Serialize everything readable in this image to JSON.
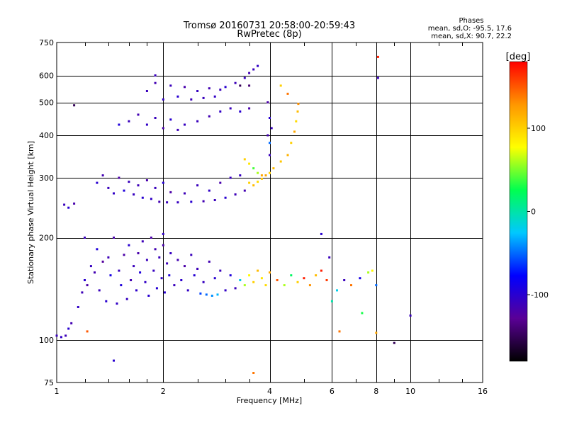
{
  "chart_data": {
    "type": "scatter",
    "title": "Tromsø 20160731 20:58:00-20:59:43",
    "subtitle": "RwPretec (8p)",
    "xlabel": "Frequency [MHz]",
    "ylabel": "Stationary phase Virtual Height [km]",
    "xscale": "log",
    "yscale": "log",
    "xlim": [
      1,
      16
    ],
    "ylim": [
      75,
      750
    ],
    "x_ticks": [
      "1",
      "2",
      "4",
      "6",
      "8",
      "10",
      "16"
    ],
    "x_tick_values": [
      1,
      2,
      4,
      6,
      8,
      10,
      16
    ],
    "y_ticks": [
      "75",
      "100",
      "200",
      "300",
      "400",
      "500",
      "600",
      "750"
    ],
    "y_tick_values": [
      75,
      100,
      200,
      300,
      400,
      500,
      600,
      750
    ],
    "x_minor_ticks": [
      1.2,
      1.4,
      1.6,
      1.8,
      2.5,
      3,
      3.5,
      5,
      7,
      9,
      12,
      14
    ],
    "grid": true,
    "colorbar": {
      "label": "[deg]",
      "ticks": [
        "-100",
        "0",
        "100"
      ],
      "tick_values": [
        -100,
        0,
        100
      ],
      "range": [
        -180,
        180
      ],
      "colormap": [
        "#000000",
        "#5a0096",
        "#0000ff",
        "#00c8ff",
        "#00ff50",
        "#ffff00",
        "#ff9600",
        "#ff0000"
      ]
    },
    "stats": {
      "heading": "Phases",
      "line1": "mean, sd,O: -95.5, 17.6",
      "line2": "mean, sd,X:  90.7, 22.2"
    },
    "series": [
      {
        "values": [
          {
            "x": 1.0,
            "y": 103,
            "p": -110
          },
          {
            "x": 1.03,
            "y": 102,
            "p": -105
          },
          {
            "x": 1.06,
            "y": 103,
            "p": -112
          },
          {
            "x": 1.08,
            "y": 108,
            "p": -100
          },
          {
            "x": 1.1,
            "y": 112,
            "p": -115
          },
          {
            "x": 1.05,
            "y": 250,
            "p": -110
          },
          {
            "x": 1.08,
            "y": 245,
            "p": -100
          },
          {
            "x": 1.12,
            "y": 252,
            "p": -118
          },
          {
            "x": 1.12,
            "y": 490,
            "p": -150
          },
          {
            "x": 1.15,
            "y": 125,
            "p": -105
          },
          {
            "x": 1.18,
            "y": 138,
            "p": -112
          },
          {
            "x": 1.2,
            "y": 150,
            "p": -100
          },
          {
            "x": 1.22,
            "y": 145,
            "p": -120
          },
          {
            "x": 1.25,
            "y": 165,
            "p": -108
          },
          {
            "x": 1.28,
            "y": 158,
            "p": -115
          },
          {
            "x": 1.3,
            "y": 185,
            "p": -95
          },
          {
            "x": 1.32,
            "y": 140,
            "p": -110
          },
          {
            "x": 1.35,
            "y": 170,
            "p": -125
          },
          {
            "x": 1.38,
            "y": 130,
            "p": -100
          },
          {
            "x": 1.4,
            "y": 175,
            "p": -112
          },
          {
            "x": 1.42,
            "y": 155,
            "p": -90
          },
          {
            "x": 1.45,
            "y": 200,
            "p": -118
          },
          {
            "x": 1.48,
            "y": 128,
            "p": -105
          },
          {
            "x": 1.5,
            "y": 160,
            "p": -110
          },
          {
            "x": 1.52,
            "y": 145,
            "p": -95
          },
          {
            "x": 1.55,
            "y": 178,
            "p": -120
          },
          {
            "x": 1.58,
            "y": 132,
            "p": -108
          },
          {
            "x": 1.6,
            "y": 190,
            "p": -100
          },
          {
            "x": 1.62,
            "y": 150,
            "p": -115
          },
          {
            "x": 1.65,
            "y": 165,
            "p": -110
          },
          {
            "x": 1.68,
            "y": 140,
            "p": -102
          },
          {
            "x": 1.7,
            "y": 180,
            "p": -118
          },
          {
            "x": 1.72,
            "y": 158,
            "p": -95
          },
          {
            "x": 1.75,
            "y": 195,
            "p": -112
          },
          {
            "x": 1.78,
            "y": 148,
            "p": -105
          },
          {
            "x": 1.8,
            "y": 172,
            "p": -110
          },
          {
            "x": 1.82,
            "y": 135,
            "p": -100
          },
          {
            "x": 1.85,
            "y": 200,
            "p": -120
          },
          {
            "x": 1.88,
            "y": 160,
            "p": -108
          },
          {
            "x": 1.9,
            "y": 185,
            "p": -115
          },
          {
            "x": 1.92,
            "y": 142,
            "p": -98
          },
          {
            "x": 1.95,
            "y": 175,
            "p": -110
          },
          {
            "x": 1.98,
            "y": 152,
            "p": -105
          },
          {
            "x": 2.0,
            "y": 190,
            "p": -118
          },
          {
            "x": 2.02,
            "y": 138,
            "p": -100
          },
          {
            "x": 2.05,
            "y": 168,
            "p": -112
          },
          {
            "x": 2.08,
            "y": 155,
            "p": -95
          },
          {
            "x": 2.1,
            "y": 180,
            "p": -108
          },
          {
            "x": 2.15,
            "y": 145,
            "p": -110
          },
          {
            "x": 2.2,
            "y": 172,
            "p": -115
          },
          {
            "x": 2.25,
            "y": 150,
            "p": -102
          },
          {
            "x": 2.3,
            "y": 165,
            "p": -120
          },
          {
            "x": 2.35,
            "y": 140,
            "p": -105
          },
          {
            "x": 2.4,
            "y": 178,
            "p": -110
          },
          {
            "x": 2.45,
            "y": 155,
            "p": -98
          },
          {
            "x": 2.5,
            "y": 162,
            "p": -112
          },
          {
            "x": 2.55,
            "y": 137,
            "p": -60
          },
          {
            "x": 2.6,
            "y": 148,
            "p": -108
          },
          {
            "x": 2.65,
            "y": 136,
            "p": -50
          },
          {
            "x": 2.7,
            "y": 170,
            "p": -115
          },
          {
            "x": 2.75,
            "y": 135,
            "p": -40
          },
          {
            "x": 2.8,
            "y": 152,
            "p": -100
          },
          {
            "x": 2.85,
            "y": 136,
            "p": -30
          },
          {
            "x": 2.9,
            "y": 160,
            "p": -110
          },
          {
            "x": 3.0,
            "y": 140,
            "p": -105
          },
          {
            "x": 3.1,
            "y": 155,
            "p": -95
          },
          {
            "x": 3.2,
            "y": 142,
            "p": -110
          },
          {
            "x": 3.3,
            "y": 150,
            "p": -20
          },
          {
            "x": 3.4,
            "y": 145,
            "p": 60
          },
          {
            "x": 3.5,
            "y": 155,
            "p": 80
          },
          {
            "x": 3.6,
            "y": 148,
            "p": 100
          },
          {
            "x": 3.7,
            "y": 160,
            "p": 110
          },
          {
            "x": 3.8,
            "y": 152,
            "p": 90
          },
          {
            "x": 3.9,
            "y": 145,
            "p": 95
          },
          {
            "x": 4.0,
            "y": 158,
            "p": 120
          },
          {
            "x": 4.2,
            "y": 150,
            "p": 150
          },
          {
            "x": 4.4,
            "y": 145,
            "p": 60
          },
          {
            "x": 4.6,
            "y": 155,
            "p": 20
          },
          {
            "x": 4.8,
            "y": 148,
            "p": 100
          },
          {
            "x": 5.0,
            "y": 152,
            "p": 170
          },
          {
            "x": 5.2,
            "y": 145,
            "p": 130
          },
          {
            "x": 5.4,
            "y": 155,
            "p": 110
          },
          {
            "x": 5.6,
            "y": 160,
            "p": 170
          },
          {
            "x": 5.8,
            "y": 150,
            "p": 160
          },
          {
            "x": 6.2,
            "y": 140,
            "p": -20
          },
          {
            "x": 6.5,
            "y": 150,
            "p": -110
          },
          {
            "x": 6.8,
            "y": 145,
            "p": 140
          },
          {
            "x": 7.2,
            "y": 152,
            "p": -90
          },
          {
            "x": 7.6,
            "y": 158,
            "p": 60
          },
          {
            "x": 7.8,
            "y": 160,
            "p": 80
          },
          {
            "x": 8.0,
            "y": 145,
            "p": -50
          },
          {
            "x": 6.0,
            "y": 130,
            "p": 0
          },
          {
            "x": 5.6,
            "y": 205,
            "p": -100
          },
          {
            "x": 5.9,
            "y": 175,
            "p": -110
          },
          {
            "x": 7.3,
            "y": 120,
            "p": 30
          },
          {
            "x": 6.3,
            "y": 106,
            "p": 140
          },
          {
            "x": 8.0,
            "y": 105,
            "p": 120
          },
          {
            "x": 10.0,
            "y": 118,
            "p": -110
          },
          {
            "x": 9.0,
            "y": 98,
            "p": -150
          },
          {
            "x": 1.45,
            "y": 87,
            "p": -100
          },
          {
            "x": 3.6,
            "y": 80,
            "p": 140
          },
          {
            "x": 1.22,
            "y": 106,
            "p": 150
          },
          {
            "x": 1.3,
            "y": 290,
            "p": -100
          },
          {
            "x": 1.35,
            "y": 305,
            "p": -115
          },
          {
            "x": 1.4,
            "y": 280,
            "p": -110
          },
          {
            "x": 1.45,
            "y": 270,
            "p": -105
          },
          {
            "x": 1.5,
            "y": 300,
            "p": -120
          },
          {
            "x": 1.55,
            "y": 275,
            "p": -95
          },
          {
            "x": 1.6,
            "y": 292,
            "p": -110
          },
          {
            "x": 1.65,
            "y": 268,
            "p": -108
          },
          {
            "x": 1.7,
            "y": 285,
            "p": -112
          },
          {
            "x": 1.75,
            "y": 262,
            "p": -100
          },
          {
            "x": 1.8,
            "y": 295,
            "p": -118
          },
          {
            "x": 1.85,
            "y": 260,
            "p": -105
          },
          {
            "x": 1.9,
            "y": 280,
            "p": -110
          },
          {
            "x": 1.95,
            "y": 255,
            "p": -115
          },
          {
            "x": 2.0,
            "y": 290,
            "p": -98
          },
          {
            "x": 2.05,
            "y": 254,
            "p": -110
          },
          {
            "x": 2.1,
            "y": 272,
            "p": -120
          },
          {
            "x": 2.2,
            "y": 254,
            "p": -108
          },
          {
            "x": 2.3,
            "y": 270,
            "p": -112
          },
          {
            "x": 2.4,
            "y": 255,
            "p": -100
          },
          {
            "x": 2.5,
            "y": 285,
            "p": -110
          },
          {
            "x": 2.6,
            "y": 256,
            "p": -115
          },
          {
            "x": 2.7,
            "y": 275,
            "p": -105
          },
          {
            "x": 2.8,
            "y": 258,
            "p": -110
          },
          {
            "x": 2.9,
            "y": 290,
            "p": -118
          },
          {
            "x": 3.0,
            "y": 262,
            "p": -100
          },
          {
            "x": 3.1,
            "y": 300,
            "p": -110
          },
          {
            "x": 3.2,
            "y": 268,
            "p": -112
          },
          {
            "x": 3.3,
            "y": 305,
            "p": -108
          },
          {
            "x": 3.4,
            "y": 275,
            "p": -115
          },
          {
            "x": 3.5,
            "y": 290,
            "p": 100
          },
          {
            "x": 3.6,
            "y": 285,
            "p": 110
          },
          {
            "x": 3.7,
            "y": 292,
            "p": 95
          },
          {
            "x": 3.8,
            "y": 298,
            "p": 105
          },
          {
            "x": 3.9,
            "y": 305,
            "p": 120
          },
          {
            "x": 4.0,
            "y": 310,
            "p": 100
          },
          {
            "x": 3.4,
            "y": 340,
            "p": 100
          },
          {
            "x": 3.5,
            "y": 330,
            "p": 90
          },
          {
            "x": 3.6,
            "y": 320,
            "p": 40
          },
          {
            "x": 3.7,
            "y": 310,
            "p": 60
          },
          {
            "x": 3.8,
            "y": 305,
            "p": 120
          },
          {
            "x": 4.1,
            "y": 320,
            "p": 110
          },
          {
            "x": 4.3,
            "y": 335,
            "p": 105
          },
          {
            "x": 4.5,
            "y": 350,
            "p": 115
          },
          {
            "x": 4.6,
            "y": 380,
            "p": 100
          },
          {
            "x": 4.7,
            "y": 410,
            "p": 120
          },
          {
            "x": 4.75,
            "y": 440,
            "p": 95
          },
          {
            "x": 4.8,
            "y": 470,
            "p": 110
          },
          {
            "x": 4.82,
            "y": 495,
            "p": 130
          },
          {
            "x": 4.5,
            "y": 530,
            "p": 140
          },
          {
            "x": 4.3,
            "y": 560,
            "p": 100
          },
          {
            "x": 4.0,
            "y": 350,
            "p": -110
          },
          {
            "x": 3.95,
            "y": 400,
            "p": -115
          },
          {
            "x": 4.0,
            "y": 450,
            "p": -100
          },
          {
            "x": 3.95,
            "y": 500,
            "p": -120
          },
          {
            "x": 4.0,
            "y": 380,
            "p": -50
          },
          {
            "x": 4.05,
            "y": 420,
            "p": -110
          },
          {
            "x": 1.6,
            "y": 440,
            "p": -110
          },
          {
            "x": 1.7,
            "y": 460,
            "p": -115
          },
          {
            "x": 1.8,
            "y": 430,
            "p": -105
          },
          {
            "x": 1.9,
            "y": 450,
            "p": -110
          },
          {
            "x": 2.0,
            "y": 420,
            "p": -118
          },
          {
            "x": 2.1,
            "y": 445,
            "p": -100
          },
          {
            "x": 2.2,
            "y": 415,
            "p": -112
          },
          {
            "x": 2.3,
            "y": 430,
            "p": -108
          },
          {
            "x": 2.5,
            "y": 440,
            "p": -110
          },
          {
            "x": 2.7,
            "y": 455,
            "p": -115
          },
          {
            "x": 2.9,
            "y": 470,
            "p": -105
          },
          {
            "x": 3.1,
            "y": 480,
            "p": -110
          },
          {
            "x": 3.3,
            "y": 470,
            "p": -100
          },
          {
            "x": 3.5,
            "y": 480,
            "p": -118
          },
          {
            "x": 1.5,
            "y": 430,
            "p": -95
          },
          {
            "x": 1.8,
            "y": 540,
            "p": -110
          },
          {
            "x": 1.9,
            "y": 570,
            "p": -115
          },
          {
            "x": 2.0,
            "y": 510,
            "p": -105
          },
          {
            "x": 2.1,
            "y": 560,
            "p": -110
          },
          {
            "x": 2.2,
            "y": 520,
            "p": -100
          },
          {
            "x": 2.3,
            "y": 555,
            "p": -118
          },
          {
            "x": 2.4,
            "y": 510,
            "p": -112
          },
          {
            "x": 2.5,
            "y": 540,
            "p": -108
          },
          {
            "x": 2.6,
            "y": 515,
            "p": -110
          },
          {
            "x": 2.7,
            "y": 550,
            "p": -115
          },
          {
            "x": 2.8,
            "y": 520,
            "p": -105
          },
          {
            "x": 2.9,
            "y": 545,
            "p": -110
          },
          {
            "x": 3.0,
            "y": 555,
            "p": -100
          },
          {
            "x": 3.2,
            "y": 570,
            "p": -112
          },
          {
            "x": 3.4,
            "y": 590,
            "p": -108
          },
          {
            "x": 3.5,
            "y": 610,
            "p": -115
          },
          {
            "x": 3.6,
            "y": 625,
            "p": -110
          },
          {
            "x": 3.7,
            "y": 640,
            "p": -105
          },
          {
            "x": 3.3,
            "y": 560,
            "p": -150
          },
          {
            "x": 3.5,
            "y": 560,
            "p": -140
          },
          {
            "x": 1.9,
            "y": 600,
            "p": -110
          },
          {
            "x": 1.2,
            "y": 200,
            "p": -110
          },
          {
            "x": 2.0,
            "y": 205,
            "p": -105
          },
          {
            "x": 8.1,
            "y": 680,
            "p": 170
          },
          {
            "x": 8.1,
            "y": 590,
            "p": -110
          }
        ]
      }
    ]
  }
}
